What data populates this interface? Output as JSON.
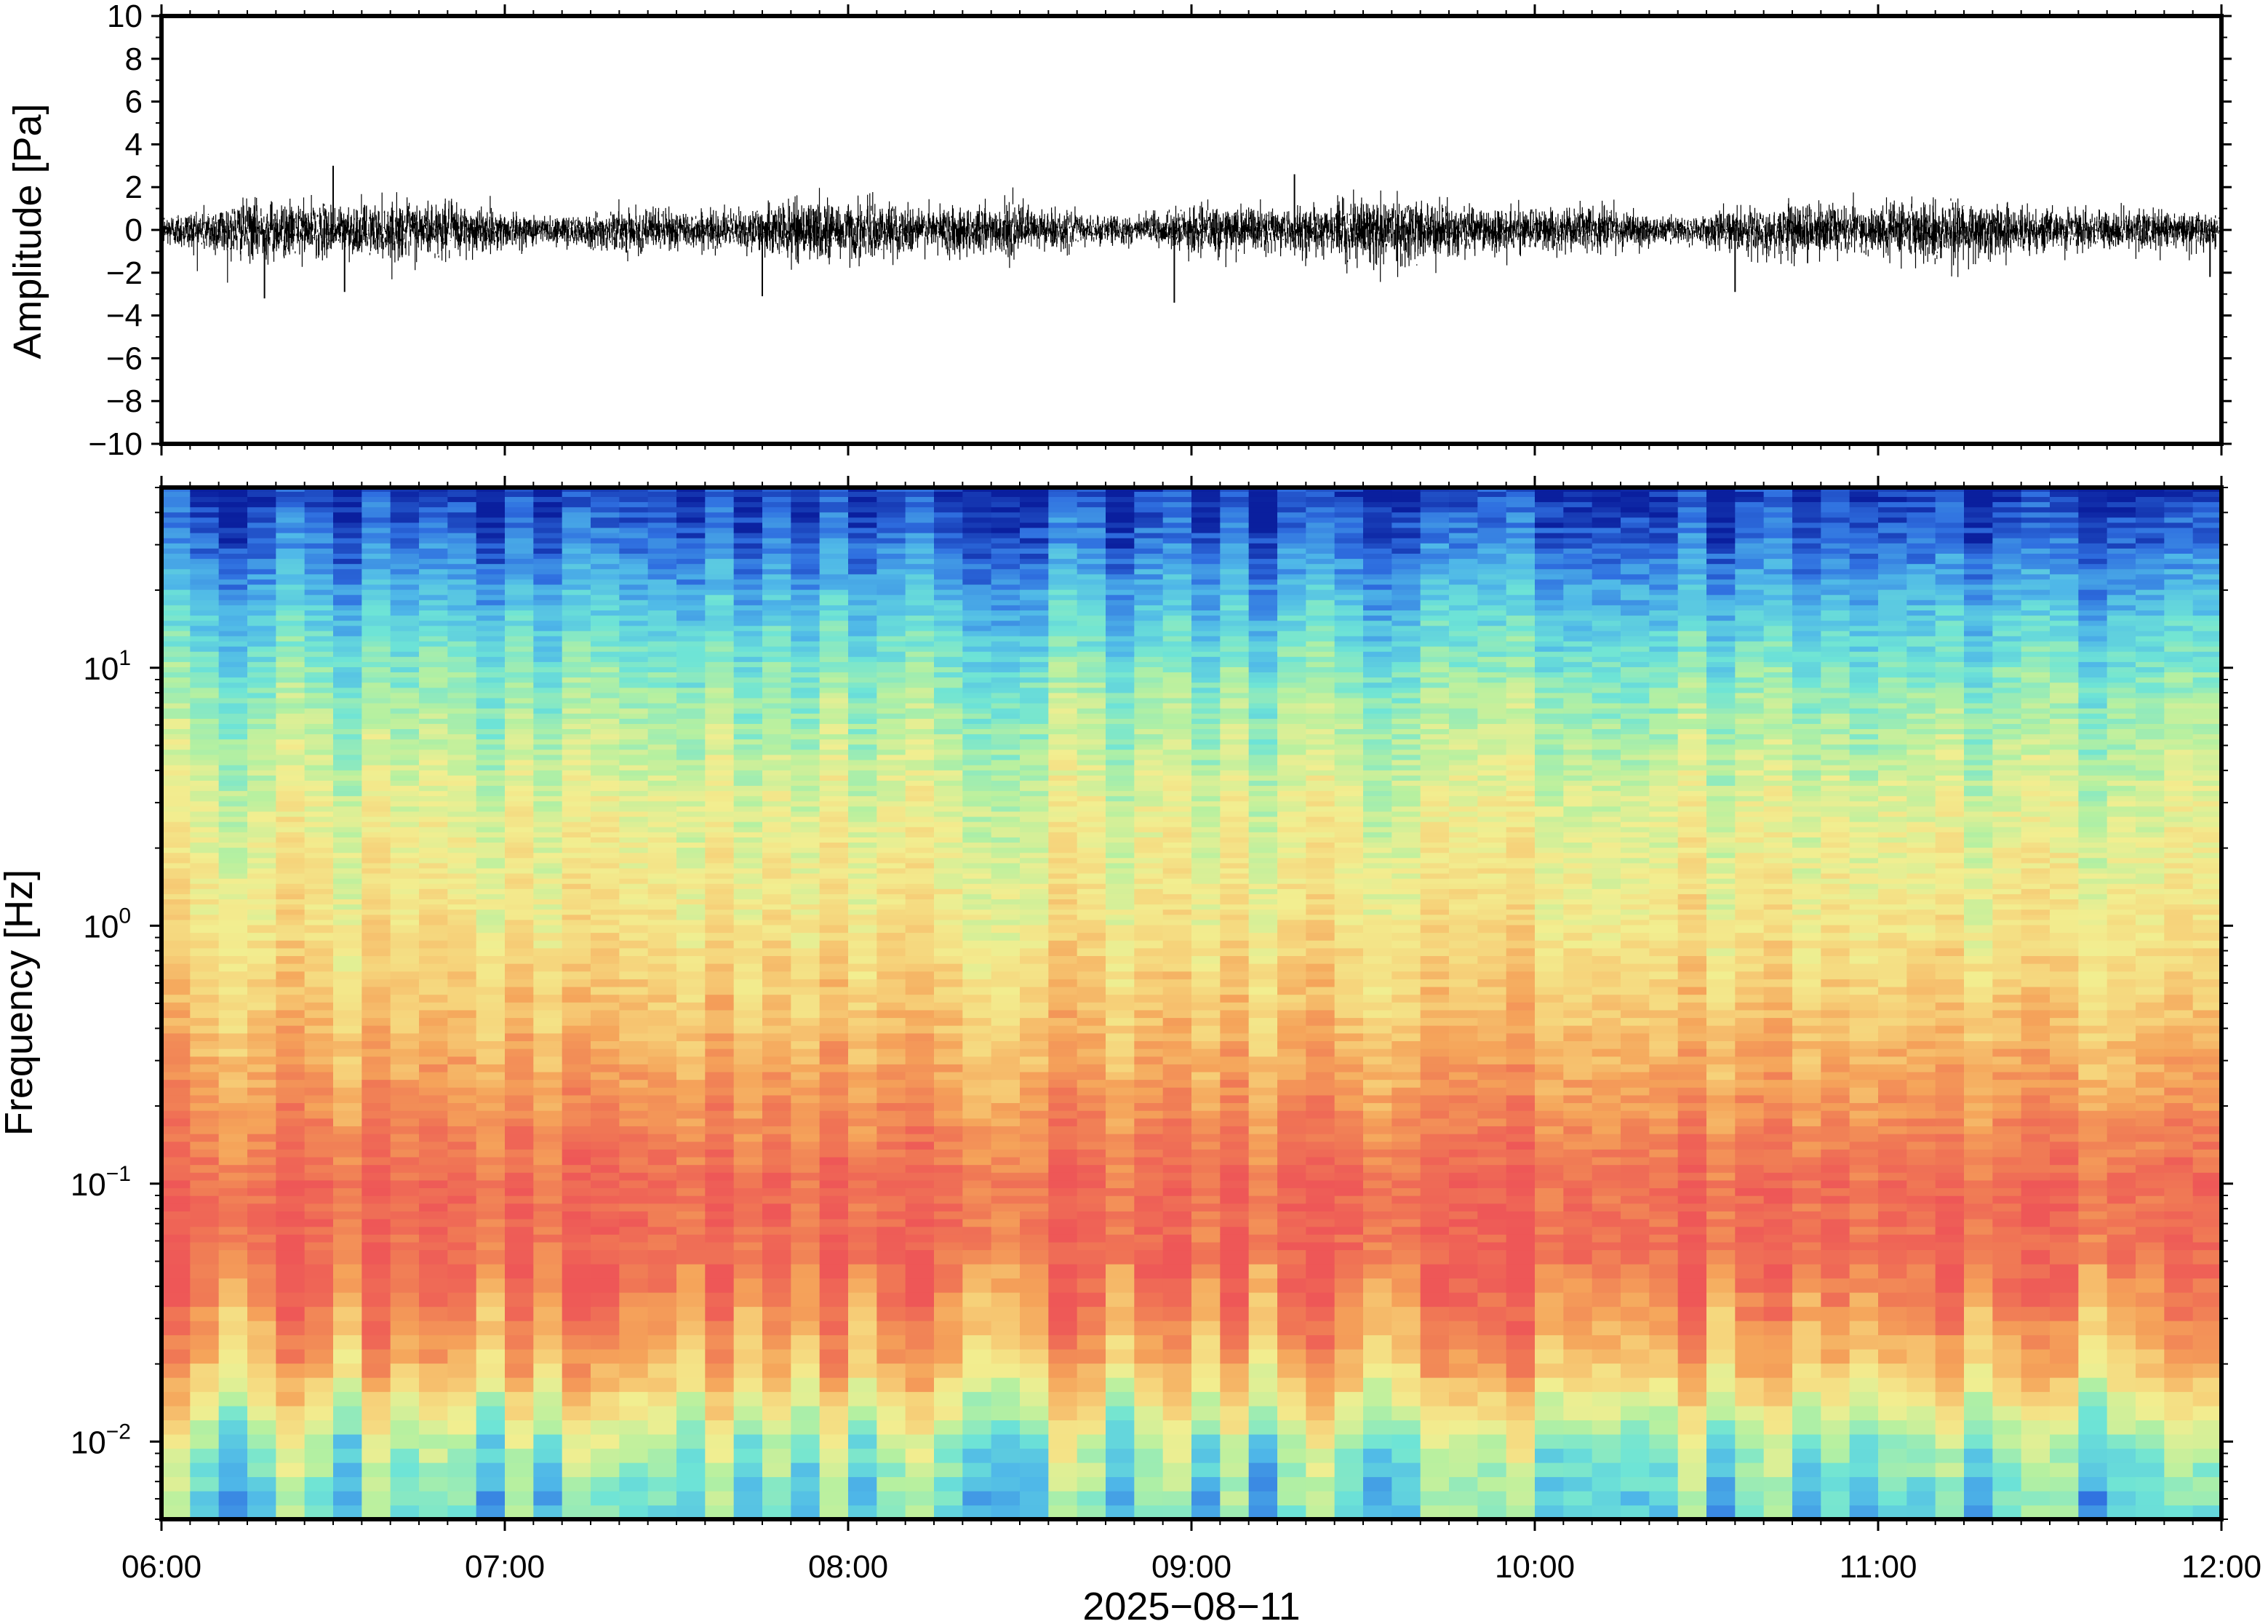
{
  "chart_data": [
    {
      "type": "line",
      "panel": "waveform",
      "ylabel": "Amplitude [Pa]",
      "xlabel": "",
      "ylim": [
        -10,
        10
      ],
      "y_ticks": [
        10,
        8,
        6,
        4,
        2,
        0,
        -2,
        -4,
        -6,
        -8,
        -10
      ],
      "y_tick_labels": [
        "10",
        "8",
        "6",
        "4",
        "2",
        "0",
        "−2",
        "−4",
        "−6",
        "−8",
        "−10"
      ],
      "x_range": [
        "06:00",
        "12:00"
      ],
      "trace_color": "#000000",
      "typical_envelope": [
        -1.2,
        1.2
      ],
      "notable_peaks": [
        {
          "time": "06:30",
          "value": 3.0
        },
        {
          "time": "06:18",
          "value": -3.2
        },
        {
          "time": "06:32",
          "value": -2.9
        },
        {
          "time": "07:45",
          "value": -3.1
        },
        {
          "time": "08:57",
          "value": -3.4
        },
        {
          "time": "09:18",
          "value": 2.6
        },
        {
          "time": "10:35",
          "value": -2.9
        },
        {
          "time": "11:58",
          "value": -2.2
        }
      ]
    },
    {
      "type": "heatmap",
      "panel": "spectrogram",
      "ylabel": "Frequency [Hz]",
      "xlabel": "2025−08−11",
      "y_scale": "log",
      "ylim": [
        0.005,
        50
      ],
      "y_ticks": [
        0.01,
        0.1,
        1,
        10
      ],
      "y_tick_labels": [
        {
          "base": "10",
          "exp": "−2"
        },
        {
          "base": "10",
          "exp": "−1"
        },
        {
          "base": "10",
          "exp": "0"
        },
        {
          "base": "10",
          "exp": "1"
        }
      ],
      "x_ticks": [
        "06:00",
        "07:00",
        "08:00",
        "09:00",
        "10:00",
        "11:00",
        "12:00"
      ],
      "x_range_hours": [
        6,
        12
      ],
      "colormap": "spectral",
      "colormap_colors": [
        "#0a1f9e",
        "#2f6fe0",
        "#4fb8e8",
        "#6ee4d6",
        "#b6f0a0",
        "#f2ee90",
        "#f6d27a",
        "#f5a45a",
        "#f07a55",
        "#ee5757"
      ],
      "relative_power_profile": [
        {
          "frequency": 0.006,
          "level": 0.32
        },
        {
          "frequency": 0.01,
          "level": 0.42
        },
        {
          "frequency": 0.02,
          "level": 0.72
        },
        {
          "frequency": 0.05,
          "level": 0.92
        },
        {
          "frequency": 0.1,
          "level": 0.93
        },
        {
          "frequency": 0.2,
          "level": 0.82
        },
        {
          "frequency": 0.5,
          "level": 0.68
        },
        {
          "frequency": 1,
          "level": 0.6
        },
        {
          "frequency": 3,
          "level": 0.52
        },
        {
          "frequency": 8,
          "level": 0.4
        },
        {
          "frequency": 15,
          "level": 0.28
        },
        {
          "frequency": 30,
          "level": 0.12
        },
        {
          "frequency": 50,
          "level": 0.03
        }
      ]
    }
  ]
}
